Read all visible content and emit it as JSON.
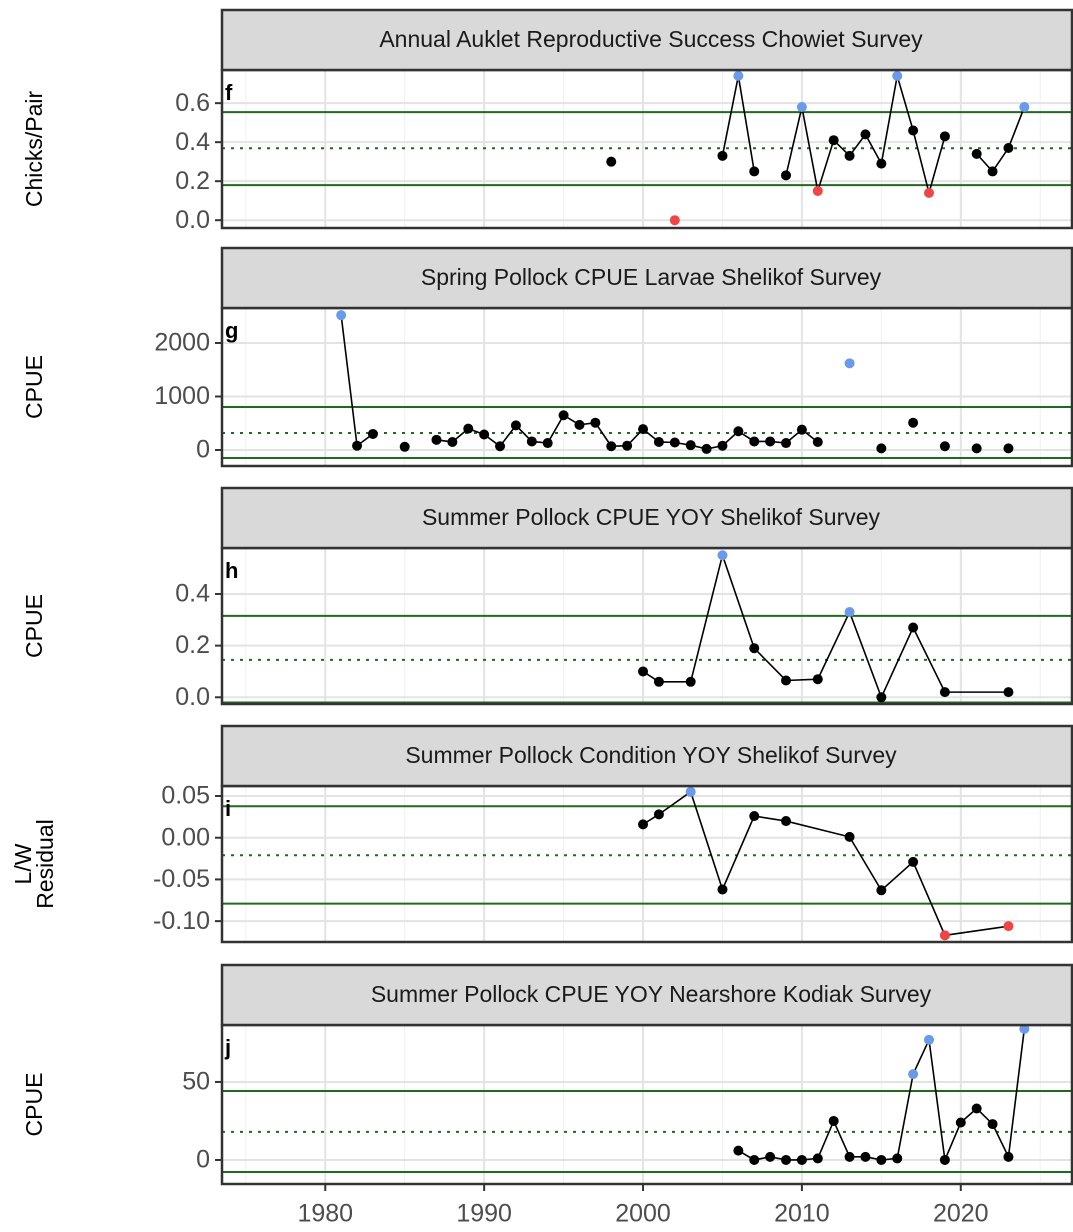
{
  "chart_data": [
    {
      "type": "line",
      "tag": "f",
      "title": "Annual Auklet Reproductive Success Chowiet Survey",
      "ylabel": [
        "Chicks/Pair"
      ],
      "x": [
        1998,
        1999,
        2002,
        2003,
        2005,
        2006,
        2007,
        2008,
        2009,
        2010,
        2011,
        2012,
        2013,
        2014,
        2015,
        2016,
        2017,
        2018,
        2019,
        2020,
        2021,
        2022,
        2023,
        2024
      ],
      "values": [
        0.3,
        null,
        0.0,
        null,
        0.33,
        0.74,
        0.25,
        null,
        0.23,
        0.58,
        0.15,
        0.41,
        0.33,
        0.44,
        0.29,
        0.74,
        0.46,
        0.14,
        0.43,
        null,
        0.34,
        0.25,
        0.37,
        0.58
      ],
      "mean": 0.369,
      "upper": 0.554,
      "lower": 0.18,
      "xlim": [
        1973.5,
        2027
      ],
      "xticks": [
        1980,
        1990,
        2000,
        2010,
        2020
      ],
      "x_minor": [
        1975,
        1985,
        1995,
        2005,
        2015,
        2025
      ],
      "ylim": [
        -0.04,
        0.77
      ],
      "yticks": [
        {
          "value": 0,
          "label": "0.0"
        },
        0.2,
        0.4,
        0.6
      ]
    },
    {
      "type": "line",
      "tag": "g",
      "title": "Spring Pollock CPUE Larvae Shelikof Survey",
      "ylabel": [
        "CPUE"
      ],
      "x": [
        1981,
        1982,
        1983,
        1984,
        1985,
        1986,
        1987,
        1988,
        1989,
        1990,
        1991,
        1992,
        1993,
        1994,
        1995,
        1996,
        1997,
        1998,
        1999,
        2000,
        2001,
        2002,
        2003,
        2004,
        2005,
        2006,
        2007,
        2008,
        2009,
        2010,
        2011,
        2012,
        2013,
        2014,
        2015,
        2016,
        2017,
        2018,
        2019,
        2020,
        2021,
        2022,
        2023
      ],
      "values": [
        2520,
        80,
        300,
        null,
        60,
        null,
        190,
        150,
        400,
        290,
        70,
        460,
        160,
        130,
        650,
        470,
        510,
        70,
        80,
        390,
        150,
        140,
        90,
        20,
        80,
        350,
        160,
        160,
        130,
        380,
        150,
        null,
        1620,
        null,
        30,
        null,
        510,
        null,
        70,
        null,
        30,
        null,
        30
      ],
      "mean": 318,
      "upper": 804,
      "lower": -150,
      "xlim": [
        1973.5,
        2027
      ],
      "xticks": [
        1980,
        1990,
        2000,
        2010,
        2020
      ],
      "x_minor": [
        1975,
        1985,
        1995,
        2005,
        2015,
        2025
      ],
      "ylim": [
        -299,
        2654
      ],
      "yticks": [
        0,
        1000,
        2000
      ]
    },
    {
      "type": "line",
      "tag": "h",
      "title": "Summer Pollock CPUE YOY Shelikof Survey",
      "ylabel": [
        "CPUE"
      ],
      "x": [
        2000,
        2001,
        2003,
        2005,
        2007,
        2009,
        2011,
        2013,
        2015,
        2017,
        2019,
        2023
      ],
      "values": [
        0.1,
        0.06,
        0.06,
        0.55,
        0.19,
        0.065,
        0.07,
        0.33,
        0.0,
        0.27,
        0.02,
        0.02
      ],
      "mean": 0.145,
      "upper": 0.315,
      "lower": -0.02,
      "xlim": [
        1973.5,
        2027
      ],
      "xticks": [
        1980,
        1990,
        2000,
        2010,
        2020
      ],
      "x_minor": [
        1975,
        1985,
        1995,
        2005,
        2015,
        2025
      ],
      "ylim": [
        -0.026,
        0.578
      ],
      "yticks": [
        {
          "value": 0,
          "label": "0.0"
        },
        0.2,
        0.4
      ]
    },
    {
      "type": "line",
      "tag": "i",
      "title": "Summer Pollock Condition YOY Shelikof Survey",
      "ylabel": [
        "L/W",
        "Residual"
      ],
      "x": [
        2000,
        2001,
        2003,
        2005,
        2007,
        2009,
        2013,
        2015,
        2017,
        2019,
        2023
      ],
      "values": [
        0.016,
        0.028,
        0.055,
        -0.062,
        0.026,
        0.02,
        0.001,
        -0.063,
        -0.029,
        -0.117,
        -0.106
      ],
      "mean": -0.021,
      "upper": 0.0378,
      "lower": -0.079,
      "xlim": [
        1973.5,
        2027
      ],
      "xticks": [
        1980,
        1990,
        2000,
        2010,
        2020
      ],
      "x_minor": [
        1975,
        1985,
        1995,
        2005,
        2015,
        2025
      ],
      "ylim": [
        -0.125,
        0.062
      ],
      "yticks": [
        {
          "value": -0.1,
          "label": "-0.10"
        },
        -0.05,
        {
          "value": 0,
          "label": "0.00"
        },
        0.05
      ]
    },
    {
      "type": "line",
      "tag": "j",
      "title": "Summer Pollock CPUE YOY Nearshore Kodiak Survey",
      "ylabel": [
        "CPUE"
      ],
      "x": [
        2006,
        2007,
        2008,
        2009,
        2010,
        2011,
        2012,
        2013,
        2014,
        2015,
        2016,
        2017,
        2018,
        2019,
        2020,
        2021,
        2022,
        2023,
        2024
      ],
      "values": [
        6,
        0,
        2,
        0,
        0,
        1,
        25,
        2,
        2,
        0,
        1,
        55,
        77,
        0,
        24,
        33,
        23,
        2,
        84
      ],
      "mean": 18,
      "upper": 44.2,
      "lower": -7.7,
      "xlim": [
        1973.5,
        2027
      ],
      "xticks": [
        1980,
        1990,
        2000,
        2010,
        2020
      ],
      "x_minor": [
        1975,
        1985,
        1995,
        2005,
        2015,
        2025
      ],
      "ylim": [
        -15.4,
        86.5
      ],
      "yticks": [
        0,
        50
      ],
      "show_xlabels": true
    }
  ],
  "style": {
    "point_color": "#000000",
    "above_color": "#6a9ae8",
    "below_color": "#f04545",
    "ref_color": "#1e6b1e",
    "grid": true
  }
}
